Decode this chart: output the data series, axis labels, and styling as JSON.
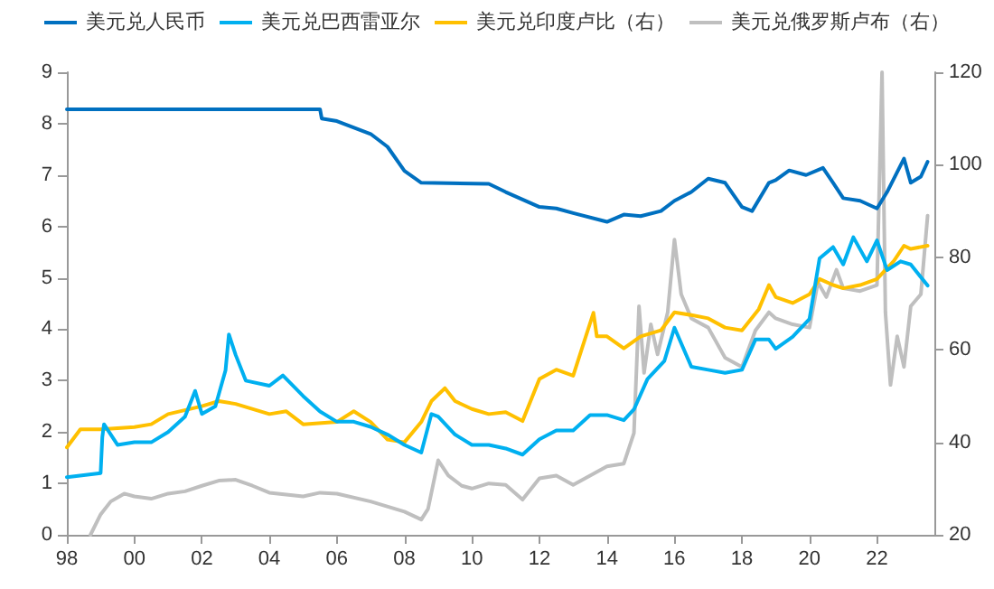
{
  "chart_data": {
    "type": "line",
    "legend": "top",
    "grid": false,
    "marker": "none",
    "line_style": "solid",
    "xlim": [
      1998,
      2023.7
    ],
    "xticks": [
      {
        "value": 1998,
        "label": "98"
      },
      {
        "value": 2000,
        "label": "00"
      },
      {
        "value": 2002,
        "label": "02"
      },
      {
        "value": 2004,
        "label": "04"
      },
      {
        "value": 2006,
        "label": "06"
      },
      {
        "value": 2008,
        "label": "08"
      },
      {
        "value": 2010,
        "label": "10"
      },
      {
        "value": 2012,
        "label": "12"
      },
      {
        "value": 2014,
        "label": "14"
      },
      {
        "value": 2016,
        "label": "16"
      },
      {
        "value": 2018,
        "label": "18"
      },
      {
        "value": 2020,
        "label": "20"
      },
      {
        "value": 2022,
        "label": "22"
      }
    ],
    "ylim": [
      0,
      9
    ],
    "yticks": [
      0,
      1,
      2,
      3,
      4,
      5,
      6,
      7,
      8,
      9
    ],
    "y2lim": [
      20,
      120
    ],
    "y2ticks": [
      20,
      40,
      60,
      80,
      100,
      120
    ],
    "series": [
      {
        "name": "美元兑人民币",
        "color": "#0070c0",
        "x": [
          1998,
          2005.5,
          2005.55,
          2006,
          2007,
          2007.5,
          2008,
          2008.5,
          2010.5,
          2011,
          2012,
          2012.5,
          2013,
          2014,
          2014.5,
          2015,
          2015.6,
          2016,
          2016.5,
          2017,
          2017.5,
          2018,
          2018.3,
          2018.8,
          2019,
          2019.4,
          2019.9,
          2020.4,
          2020.7,
          2021,
          2021.5,
          2022,
          2022.3,
          2022.8,
          2023,
          2023.3,
          2023.5
        ],
        "values": [
          8.28,
          8.28,
          8.1,
          8.05,
          7.8,
          7.55,
          7.08,
          6.85,
          6.83,
          6.67,
          6.38,
          6.35,
          6.26,
          6.09,
          6.23,
          6.2,
          6.3,
          6.5,
          6.67,
          6.93,
          6.85,
          6.38,
          6.3,
          6.85,
          6.9,
          7.09,
          7.0,
          7.14,
          6.85,
          6.55,
          6.5,
          6.35,
          6.67,
          7.32,
          6.85,
          6.97,
          7.26
        ]
      },
      {
        "name": "美元兑巴西雷亚尔",
        "color": "#00b0f0",
        "x": [
          1998,
          1999,
          1999.05,
          1999.1,
          1999.5,
          2000,
          2000.5,
          2001,
          2001.5,
          2001.8,
          2002,
          2002.4,
          2002.7,
          2002.8,
          2003,
          2003.3,
          2004,
          2004.4,
          2005,
          2005.5,
          2006,
          2006.5,
          2007,
          2007.5,
          2008,
          2008.5,
          2008.8,
          2009,
          2009.5,
          2010,
          2010.5,
          2011,
          2011.5,
          2012,
          2012.5,
          2013,
          2013.5,
          2014,
          2014.5,
          2014.8,
          2015.2,
          2015.7,
          2016,
          2016.5,
          2017,
          2017.5,
          2018,
          2018.4,
          2018.8,
          2019,
          2019.5,
          2020,
          2020.3,
          2020.7,
          2021,
          2021.3,
          2021.7,
          2022,
          2022.3,
          2022.7,
          2023,
          2023.5
        ],
        "values": [
          1.12,
          1.2,
          1.9,
          2.15,
          1.75,
          1.8,
          1.8,
          2.0,
          2.3,
          2.8,
          2.35,
          2.5,
          3.2,
          3.9,
          3.5,
          3.0,
          2.9,
          3.1,
          2.7,
          2.4,
          2.2,
          2.2,
          2.1,
          1.95,
          1.75,
          1.6,
          2.35,
          2.3,
          1.95,
          1.75,
          1.75,
          1.68,
          1.56,
          1.86,
          2.03,
          2.03,
          2.33,
          2.33,
          2.23,
          2.44,
          3.03,
          3.38,
          4.03,
          3.27,
          3.21,
          3.15,
          3.21,
          3.8,
          3.8,
          3.62,
          3.85,
          4.2,
          5.38,
          5.6,
          5.26,
          5.79,
          5.32,
          5.73,
          5.15,
          5.32,
          5.26,
          4.85
        ]
      },
      {
        "name": "美元兑印度卢比（右）",
        "color": "#ffc000",
        "axis": "y2",
        "x": [
          1998,
          1998.4,
          1999,
          2000,
          2000.5,
          2001,
          2002,
          2002.5,
          2003,
          2004,
          2004.5,
          2005,
          2006,
          2006.5,
          2007,
          2007.5,
          2008,
          2008.5,
          2008.8,
          2009.2,
          2009.5,
          2010,
          2010.5,
          2011,
          2011.5,
          2012,
          2012.5,
          2013,
          2013.6,
          2013.7,
          2014,
          2014.5,
          2015,
          2015.6,
          2016,
          2016.5,
          2017,
          2017.5,
          2018,
          2018.5,
          2018.8,
          2019,
          2019.5,
          2020,
          2020.3,
          2020.7,
          2021,
          2021.5,
          2022,
          2022.5,
          2022.8,
          2023,
          2023.5
        ],
        "values": [
          38.9,
          42.8,
          42.8,
          43.3,
          43.9,
          46.1,
          47.8,
          48.9,
          48.3,
          46.1,
          46.7,
          43.9,
          44.4,
          46.7,
          44.4,
          40.6,
          40,
          44.4,
          48.9,
          51.7,
          48.9,
          47.2,
          46.1,
          46.5,
          44.6,
          53.7,
          55.7,
          54.4,
          68,
          62.9,
          62.9,
          60.3,
          62.9,
          64.2,
          68.1,
          67.5,
          66.8,
          64.8,
          64.2,
          68.8,
          74,
          71.4,
          70.1,
          72,
          75.3,
          74,
          73.3,
          74,
          75.3,
          79.2,
          82.5,
          81.8,
          82.5
        ]
      },
      {
        "name": "美元兑俄罗斯卢布（右）",
        "color": "#bfbfbf",
        "axis": "y2",
        "x": [
          1998.7,
          1999,
          1999.3,
          1999.7,
          2000,
          2000.5,
          2001,
          2001.5,
          2002,
          2002.5,
          2003,
          2003.5,
          2004,
          2005,
          2005.5,
          2006,
          2007,
          2008,
          2008.5,
          2008.7,
          2009,
          2009.3,
          2009.7,
          2010,
          2010.5,
          2011,
          2011.5,
          2012,
          2012.5,
          2013,
          2013.5,
          2014,
          2014.5,
          2014.8,
          2014.95,
          2015.1,
          2015.3,
          2015.5,
          2015.8,
          2016,
          2016.2,
          2016.5,
          2017,
          2017.5,
          2018,
          2018.4,
          2018.8,
          2019,
          2019.5,
          2020,
          2020.25,
          2020.5,
          2020.8,
          2021,
          2021.5,
          2022,
          2022.15,
          2022.25,
          2022.4,
          2022.6,
          2022.8,
          2023,
          2023.3,
          2023.5
        ],
        "values": [
          20,
          24.4,
          27.2,
          28.9,
          28.3,
          27.8,
          28.9,
          29.4,
          30.6,
          31.7,
          31.9,
          30.6,
          29.1,
          28.3,
          29.1,
          28.9,
          27.2,
          25,
          23.3,
          25.6,
          36.1,
          32.8,
          30.6,
          30,
          31.1,
          30.8,
          27.6,
          32.2,
          32.8,
          30.8,
          32.8,
          34.8,
          35.4,
          42,
          69.4,
          55,
          65.5,
          59,
          68.1,
          83.8,
          72,
          66.8,
          64.8,
          58.3,
          56.3,
          64.2,
          68.1,
          66.8,
          65.5,
          64.8,
          74.6,
          71.4,
          77.3,
          73.3,
          72.7,
          74,
          120,
          68.1,
          52.4,
          62.9,
          56.3,
          69.4,
          72,
          89
        ]
      }
    ]
  }
}
